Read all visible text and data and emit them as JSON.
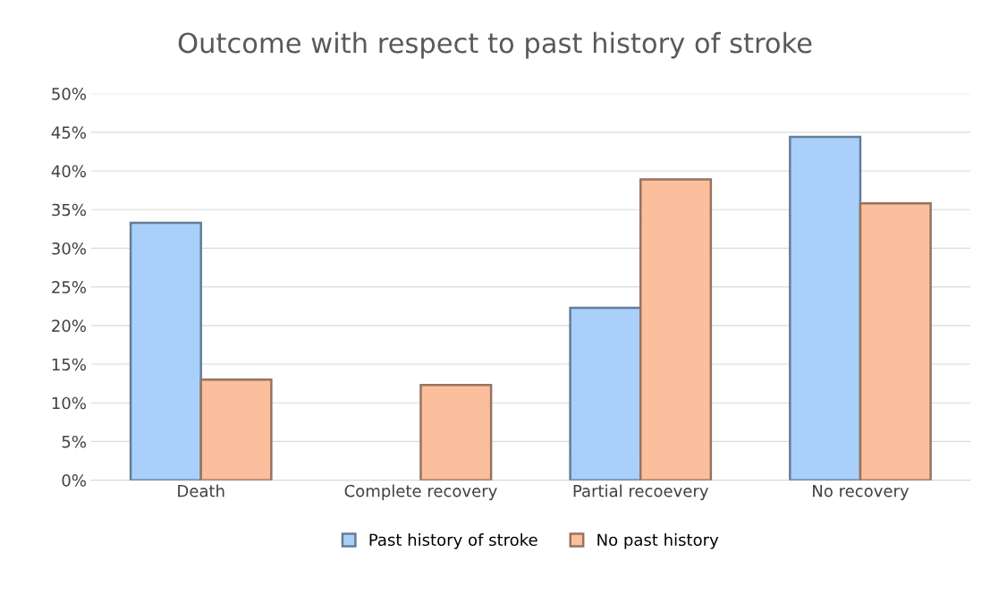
{
  "chart_data": {
    "type": "bar",
    "title": "Outcome with respect to past history of stroke",
    "categories": [
      "Death",
      "Complete recovery",
      "Partial recoevery",
      "No recovery"
    ],
    "series": [
      {
        "name": "Past history of stroke",
        "color": "#a9d0fa",
        "values": [
          33.3,
          null,
          22.3,
          44.4
        ]
      },
      {
        "name": "No past history",
        "color": "#fbbf9e",
        "values": [
          13.0,
          12.3,
          38.9,
          35.8
        ]
      }
    ],
    "ylim": [
      0,
      50
    ],
    "yticks": [
      {
        "value": 0,
        "label": "0%"
      },
      {
        "value": 5,
        "label": "5%"
      },
      {
        "value": 10,
        "label": "10%"
      },
      {
        "value": 15,
        "label": "15%"
      },
      {
        "value": 20,
        "label": "20%"
      },
      {
        "value": 25,
        "label": "25%"
      },
      {
        "value": 30,
        "label": "30%"
      },
      {
        "value": 35,
        "label": "35%"
      },
      {
        "value": 40,
        "label": "40%"
      },
      {
        "value": 45,
        "label": "45%"
      },
      {
        "value": 50,
        "label": "50%"
      }
    ],
    "grid": "y",
    "legend": "bottom"
  }
}
